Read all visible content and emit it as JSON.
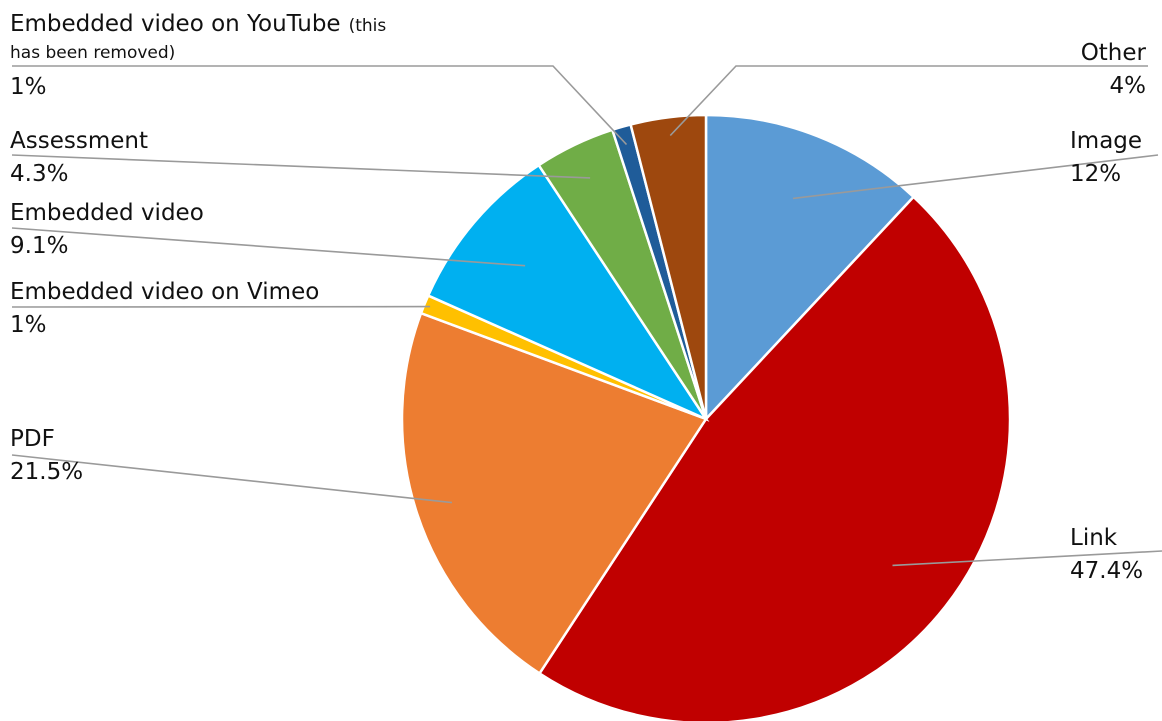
{
  "chart_data": {
    "type": "pie",
    "start_angle_deg": 0,
    "direction": "clockwise",
    "slices": [
      {
        "label": "Image",
        "value": 12,
        "value_text": "12%",
        "color": "#5B9BD5"
      },
      {
        "label": "Link",
        "value": 47.4,
        "value_text": "47.4%",
        "color": "#C00000"
      },
      {
        "label": "PDF",
        "value": 21.5,
        "value_text": "21.5%",
        "color": "#ED7D31"
      },
      {
        "label": "Embedded video on Vimeo",
        "value": 1,
        "value_text": "1%",
        "color": "#FFC000"
      },
      {
        "label": "Embedded video",
        "value": 9.1,
        "value_text": "9.1%",
        "color": "#00B0F0"
      },
      {
        "label": "Assessment",
        "value": 4.3,
        "value_text": "4.3%",
        "color": "#70AD47"
      },
      {
        "label": "Embedded video on YouTube",
        "label_note": "(this",
        "label_note_line2": "has been removed)",
        "value": 1,
        "value_text": "1%",
        "color": "#1F5C99"
      },
      {
        "label": "Other",
        "value": 4,
        "value_text": "4%",
        "color": "#9E480E"
      }
    ]
  }
}
